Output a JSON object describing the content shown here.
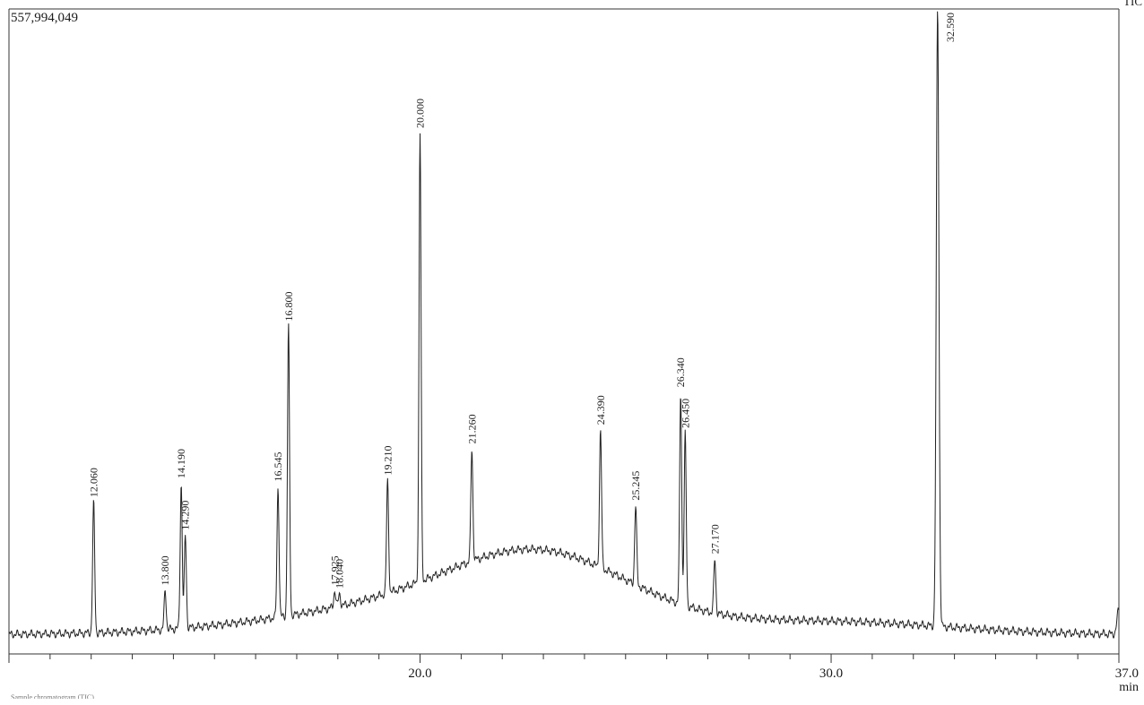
{
  "chart_data": {
    "type": "line",
    "y_max_label": "557,994,049",
    "corner_label": "TIC",
    "x_unit": "min",
    "xlim": [
      10.0,
      37.0
    ],
    "x_ticks": [
      "20.0",
      "30.0",
      "37.0"
    ],
    "peaks": [
      {
        "rt": 12.06,
        "label": "12.060",
        "height": 0.215
      },
      {
        "rt": 13.8,
        "label": "13.800",
        "height": 0.075
      },
      {
        "rt": 14.19,
        "label": "14.190",
        "height": 0.245
      },
      {
        "rt": 14.29,
        "label": "14.290",
        "height": 0.163
      },
      {
        "rt": 16.545,
        "label": "16.545",
        "height": 0.24
      },
      {
        "rt": 16.8,
        "label": "16.800",
        "height": 0.495
      },
      {
        "rt": 17.925,
        "label": "17.925",
        "height": 0.075
      },
      {
        "rt": 18.04,
        "label": "18.040",
        "height": 0.07
      },
      {
        "rt": 19.21,
        "label": "19.210",
        "height": 0.25
      },
      {
        "rt": 20.0,
        "label": "20.000",
        "height": 0.802
      },
      {
        "rt": 21.26,
        "label": "21.260",
        "height": 0.3
      },
      {
        "rt": 24.39,
        "label": "24.390",
        "height": 0.33
      },
      {
        "rt": 25.245,
        "label": "25.245",
        "height": 0.21
      },
      {
        "rt": 26.34,
        "label": "26.340",
        "height": 0.39
      },
      {
        "rt": 26.45,
        "label": "26.450",
        "height": 0.325
      },
      {
        "rt": 27.17,
        "label": "27.170",
        "height": 0.125
      },
      {
        "rt": 32.59,
        "label": "32.590",
        "height": 1.0
      }
    ],
    "footnote": "Sample chromatogram (TIC)"
  }
}
